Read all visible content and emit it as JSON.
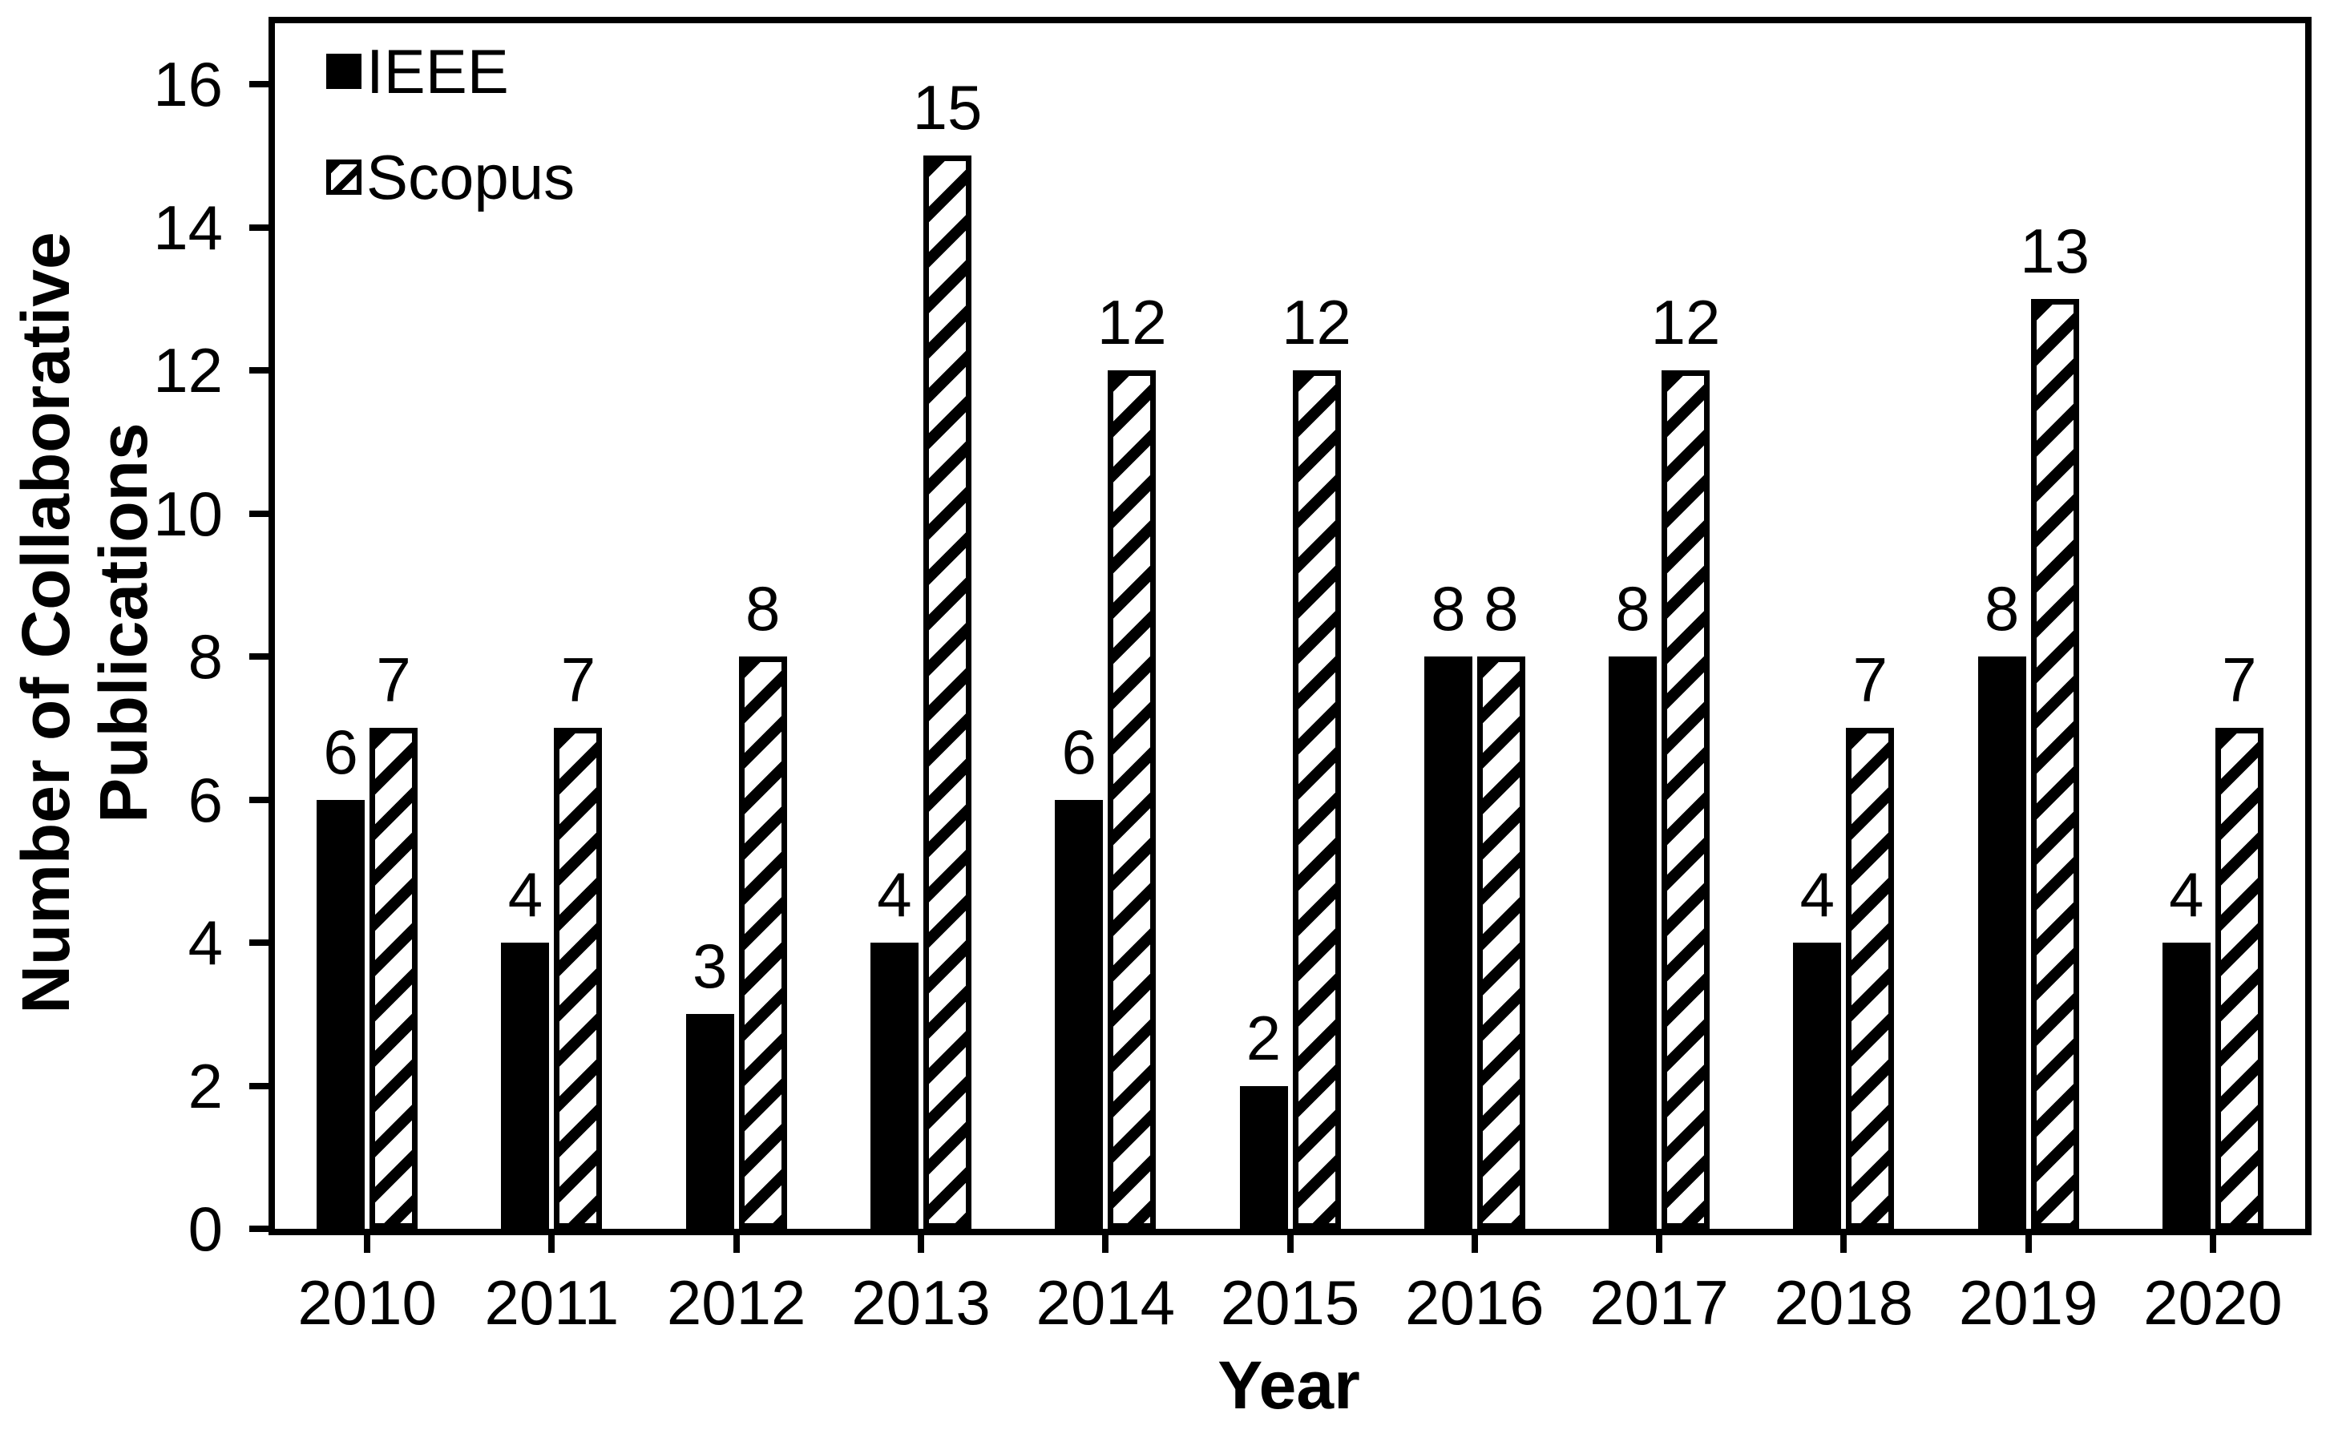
{
  "chart_data": {
    "type": "bar",
    "title": "",
    "categories": [
      "2010",
      "2011",
      "2012",
      "2013",
      "2014",
      "2015",
      "2016",
      "2017",
      "2018",
      "2019",
      "2020"
    ],
    "series": [
      {
        "name": "IEEE",
        "pattern": "solid-black",
        "values": [
          6,
          4,
          3,
          4,
          6,
          2,
          8,
          8,
          4,
          8,
          4
        ]
      },
      {
        "name": "Scopus",
        "pattern": "diagonal-hatch",
        "values": [
          7,
          7,
          8,
          15,
          12,
          12,
          8,
          12,
          7,
          13,
          7
        ]
      }
    ],
    "xlabel": "Year",
    "ylabel": "Number of Collaborative Publications",
    "ylabel_lines": [
      "Number of Collaborative",
      "Publications"
    ],
    "yticks": [
      0,
      2,
      4,
      6,
      8,
      10,
      12,
      14,
      16
    ],
    "ylim": [
      0,
      16.9
    ],
    "grid": false,
    "data_labels": true,
    "legend_position": "top-left-inside",
    "colors": {
      "foreground": "#000000",
      "background": "#ffffff"
    }
  }
}
